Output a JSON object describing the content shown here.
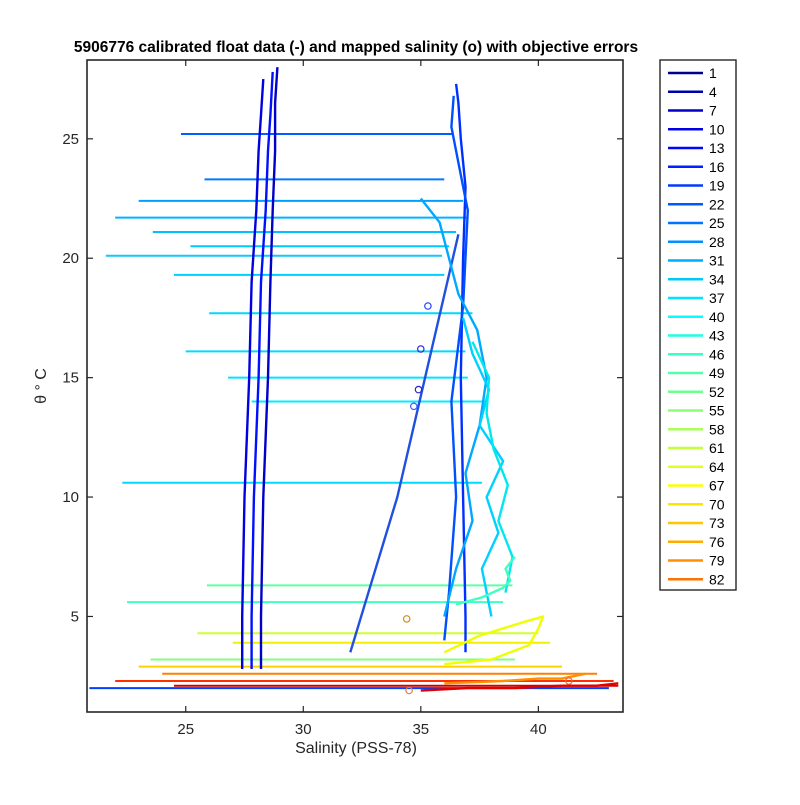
{
  "chart_data": {
    "type": "line",
    "title": "5906776 calibrated float data (-) and mapped salinity (o) with objective errors",
    "xlabel": "Salinity (PSS-78)",
    "ylabel": "θ ° C",
    "xlim": [
      20.8,
      43.6
    ],
    "ylim": [
      1.0,
      28.3
    ],
    "xticks": [
      25,
      30,
      35,
      40
    ],
    "yticks": [
      5,
      10,
      15,
      20,
      25
    ],
    "grid": false,
    "legend_position": "outside-right",
    "legend": [
      {
        "label": "1",
        "color": "#00008f"
      },
      {
        "label": "4",
        "color": "#0000ab"
      },
      {
        "label": "7",
        "color": "#0000c7"
      },
      {
        "label": "10",
        "color": "#0000e3"
      },
      {
        "label": "13",
        "color": "#0004ff"
      },
      {
        "label": "16",
        "color": "#0020ff"
      },
      {
        "label": "19",
        "color": "#003cff"
      },
      {
        "label": "22",
        "color": "#0058ff"
      },
      {
        "label": "25",
        "color": "#0074ff"
      },
      {
        "label": "28",
        "color": "#0090ff"
      },
      {
        "label": "31",
        "color": "#00acff"
      },
      {
        "label": "34",
        "color": "#00c8ff"
      },
      {
        "label": "37",
        "color": "#00e4ff"
      },
      {
        "label": "40",
        "color": "#00ffff"
      },
      {
        "label": "43",
        "color": "#1cffe3"
      },
      {
        "label": "46",
        "color": "#38ffc7"
      },
      {
        "label": "49",
        "color": "#54ffab"
      },
      {
        "label": "52",
        "color": "#70ff8f"
      },
      {
        "label": "55",
        "color": "#8cff73"
      },
      {
        "label": "58",
        "color": "#a8ff57"
      },
      {
        "label": "61",
        "color": "#c4ff3b"
      },
      {
        "label": "64",
        "color": "#e0ff1f"
      },
      {
        "label": "67",
        "color": "#fcff03"
      },
      {
        "label": "70",
        "color": "#ffe300"
      },
      {
        "label": "73",
        "color": "#ffc700"
      },
      {
        "label": "76",
        "color": "#ffab00"
      },
      {
        "label": "79",
        "color": "#ff8f00"
      },
      {
        "label": "82",
        "color": "#ff7300"
      }
    ],
    "profiles": [
      {
        "color": "#0000c8",
        "x": [
          28.2,
          28.2,
          28.3,
          28.5,
          28.6,
          28.7,
          28.8,
          28.8,
          28.9
        ],
        "y": [
          2.8,
          5.0,
          10.0,
          15.0,
          19.0,
          22.0,
          24.5,
          26.5,
          28.0
        ]
      },
      {
        "color": "#0000e0",
        "x": [
          27.4,
          27.4,
          27.5,
          27.7,
          27.8,
          28.0,
          28.1,
          28.2,
          28.3
        ],
        "y": [
          2.8,
          5.0,
          10.0,
          15.0,
          19.0,
          22.0,
          24.5,
          26.0,
          27.5
        ]
      },
      {
        "color": "#0010ff",
        "x": [
          27.8,
          27.8,
          27.9,
          28.1,
          28.2,
          28.4,
          28.5,
          28.6,
          28.7
        ],
        "y": [
          2.8,
          5.0,
          10.0,
          15.0,
          19.0,
          22.0,
          24.5,
          26.0,
          27.8
        ]
      },
      {
        "color": "#0030ff",
        "x": [
          36.9,
          36.9,
          36.8,
          36.7,
          36.8,
          36.9,
          36.7,
          36.6,
          36.5
        ],
        "y": [
          3.5,
          5.0,
          10.0,
          15.0,
          20.0,
          23.0,
          25.0,
          26.5,
          27.3
        ]
      },
      {
        "color": "#0050ff",
        "x": [
          36.0,
          36.2,
          36.5,
          36.3,
          36.8,
          37.0,
          36.6,
          36.3,
          36.4
        ],
        "y": [
          4.0,
          6.0,
          10.0,
          14.0,
          18.0,
          22.0,
          24.0,
          25.5,
          26.8
        ]
      },
      {
        "color": "#2050e0",
        "x": [
          32.0,
          34.0,
          36.6
        ],
        "y": [
          3.5,
          10.0,
          21.0
        ]
      },
      {
        "color": "#00a8ff",
        "x": [
          36.0,
          36.5,
          37.2,
          36.9,
          37.5,
          37.8,
          37.4,
          36.6,
          36.2,
          35.8,
          35.0
        ],
        "y": [
          5.0,
          7.0,
          9.0,
          11.0,
          13.0,
          15.0,
          17.0,
          18.5,
          20.0,
          21.5,
          22.5
        ]
      },
      {
        "color": "#00d0ff",
        "x": [
          38.0,
          37.6,
          38.3,
          37.8,
          38.5,
          37.5,
          37.9,
          37.2,
          36.8
        ],
        "y": [
          5.0,
          7.0,
          8.5,
          10.0,
          11.5,
          13.0,
          14.5,
          16.0,
          17.5
        ]
      },
      {
        "color": "#00e8ee",
        "x": [
          38.6,
          38.9,
          38.3,
          38.7,
          38.1,
          37.8,
          37.9,
          37.2
        ],
        "y": [
          6.0,
          7.5,
          9.0,
          10.5,
          12.0,
          13.5,
          15.0,
          16.5
        ]
      },
      {
        "color": "#40ffc0",
        "x": [
          36.5,
          37.6,
          38.5,
          38.8,
          38.6,
          39.0
        ],
        "y": [
          5.5,
          5.8,
          6.2,
          6.5,
          7.0,
          7.5
        ]
      },
      {
        "color": "#f0ff00",
        "x": [
          36.0,
          37.5,
          39.5,
          40.2,
          40.0,
          39.6,
          38.0,
          36.0
        ],
        "y": [
          3.5,
          4.2,
          4.8,
          5.0,
          4.5,
          3.8,
          3.2,
          3.0
        ]
      },
      {
        "color": "#ff9000",
        "x": [
          36.0,
          38.5,
          40.0,
          41.0,
          41.5,
          42.0
        ],
        "y": [
          2.2,
          2.3,
          2.4,
          2.4,
          2.5,
          2.6
        ]
      },
      {
        "color": "#e00000",
        "x": [
          35.0,
          37.0,
          39.0,
          41.0,
          42.5,
          43.4
        ],
        "y": [
          1.9,
          2.0,
          2.0,
          2.1,
          2.1,
          2.2
        ]
      }
    ],
    "spikes": [
      {
        "color": "#0060ff",
        "x0": 24.8,
        "x1": 36.4,
        "y": 25.2
      },
      {
        "color": "#0078ff",
        "x0": 25.8,
        "x1": 36.0,
        "y": 23.3
      },
      {
        "color": "#00a0ff",
        "x0": 23.0,
        "x1": 36.8,
        "y": 22.4
      },
      {
        "color": "#00b4ff",
        "x0": 22.0,
        "x1": 37.0,
        "y": 21.7
      },
      {
        "color": "#00c0ff",
        "x0": 23.6,
        "x1": 36.5,
        "y": 21.1
      },
      {
        "color": "#00c8ff",
        "x0": 25.2,
        "x1": 36.2,
        "y": 20.5
      },
      {
        "color": "#10c8ff",
        "x0": 21.6,
        "x1": 35.9,
        "y": 20.1
      },
      {
        "color": "#00d0ff",
        "x0": 24.5,
        "x1": 36.0,
        "y": 19.3
      },
      {
        "color": "#00d8ff",
        "x0": 26.0,
        "x1": 37.2,
        "y": 17.7
      },
      {
        "color": "#00dcff",
        "x0": 25.0,
        "x1": 36.9,
        "y": 16.1
      },
      {
        "color": "#00e4ff",
        "x0": 26.8,
        "x1": 37.0,
        "y": 15.0
      },
      {
        "color": "#00ecff",
        "x0": 27.8,
        "x1": 37.8,
        "y": 14.0
      },
      {
        "color": "#00d8ff",
        "x0": 22.3,
        "x1": 37.6,
        "y": 10.6
      },
      {
        "color": "#60ffa0",
        "x0": 25.9,
        "x1": 38.9,
        "y": 6.3
      },
      {
        "color": "#40ffc0",
        "x0": 22.5,
        "x1": 38.5,
        "y": 5.6
      },
      {
        "color": "#d0ff30",
        "x0": 25.5,
        "x1": 40.0,
        "y": 4.3
      },
      {
        "color": "#f0f000",
        "x0": 27.0,
        "x1": 40.5,
        "y": 3.9
      },
      {
        "color": "#80ff80",
        "x0": 23.5,
        "x1": 39.0,
        "y": 3.2
      },
      {
        "color": "#ffd000",
        "x0": 23.0,
        "x1": 41.0,
        "y": 2.9
      },
      {
        "color": "#ff8000",
        "x0": 24.0,
        "x1": 42.5,
        "y": 2.6
      },
      {
        "color": "#ff3000",
        "x0": 22.0,
        "x1": 43.2,
        "y": 2.3
      },
      {
        "color": "#d00000",
        "x0": 24.5,
        "x1": 43.4,
        "y": 2.1
      },
      {
        "color": "#0040ff",
        "x0": 20.9,
        "x1": 43.0,
        "y": 2.0
      }
    ],
    "mapped_points": [
      {
        "color": "#2040ff",
        "x": 35.3,
        "y": 18.0
      },
      {
        "color": "#3020e0",
        "x": 35.0,
        "y": 16.2
      },
      {
        "color": "#3020d0",
        "x": 34.9,
        "y": 14.5
      },
      {
        "color": "#4060ff",
        "x": 34.7,
        "y": 13.8
      },
      {
        "color": "#d09020",
        "x": 34.4,
        "y": 4.9
      },
      {
        "color": "#e08030",
        "x": 34.5,
        "y": 1.9
      },
      {
        "color": "#e07030",
        "x": 41.3,
        "y": 2.3
      }
    ]
  }
}
